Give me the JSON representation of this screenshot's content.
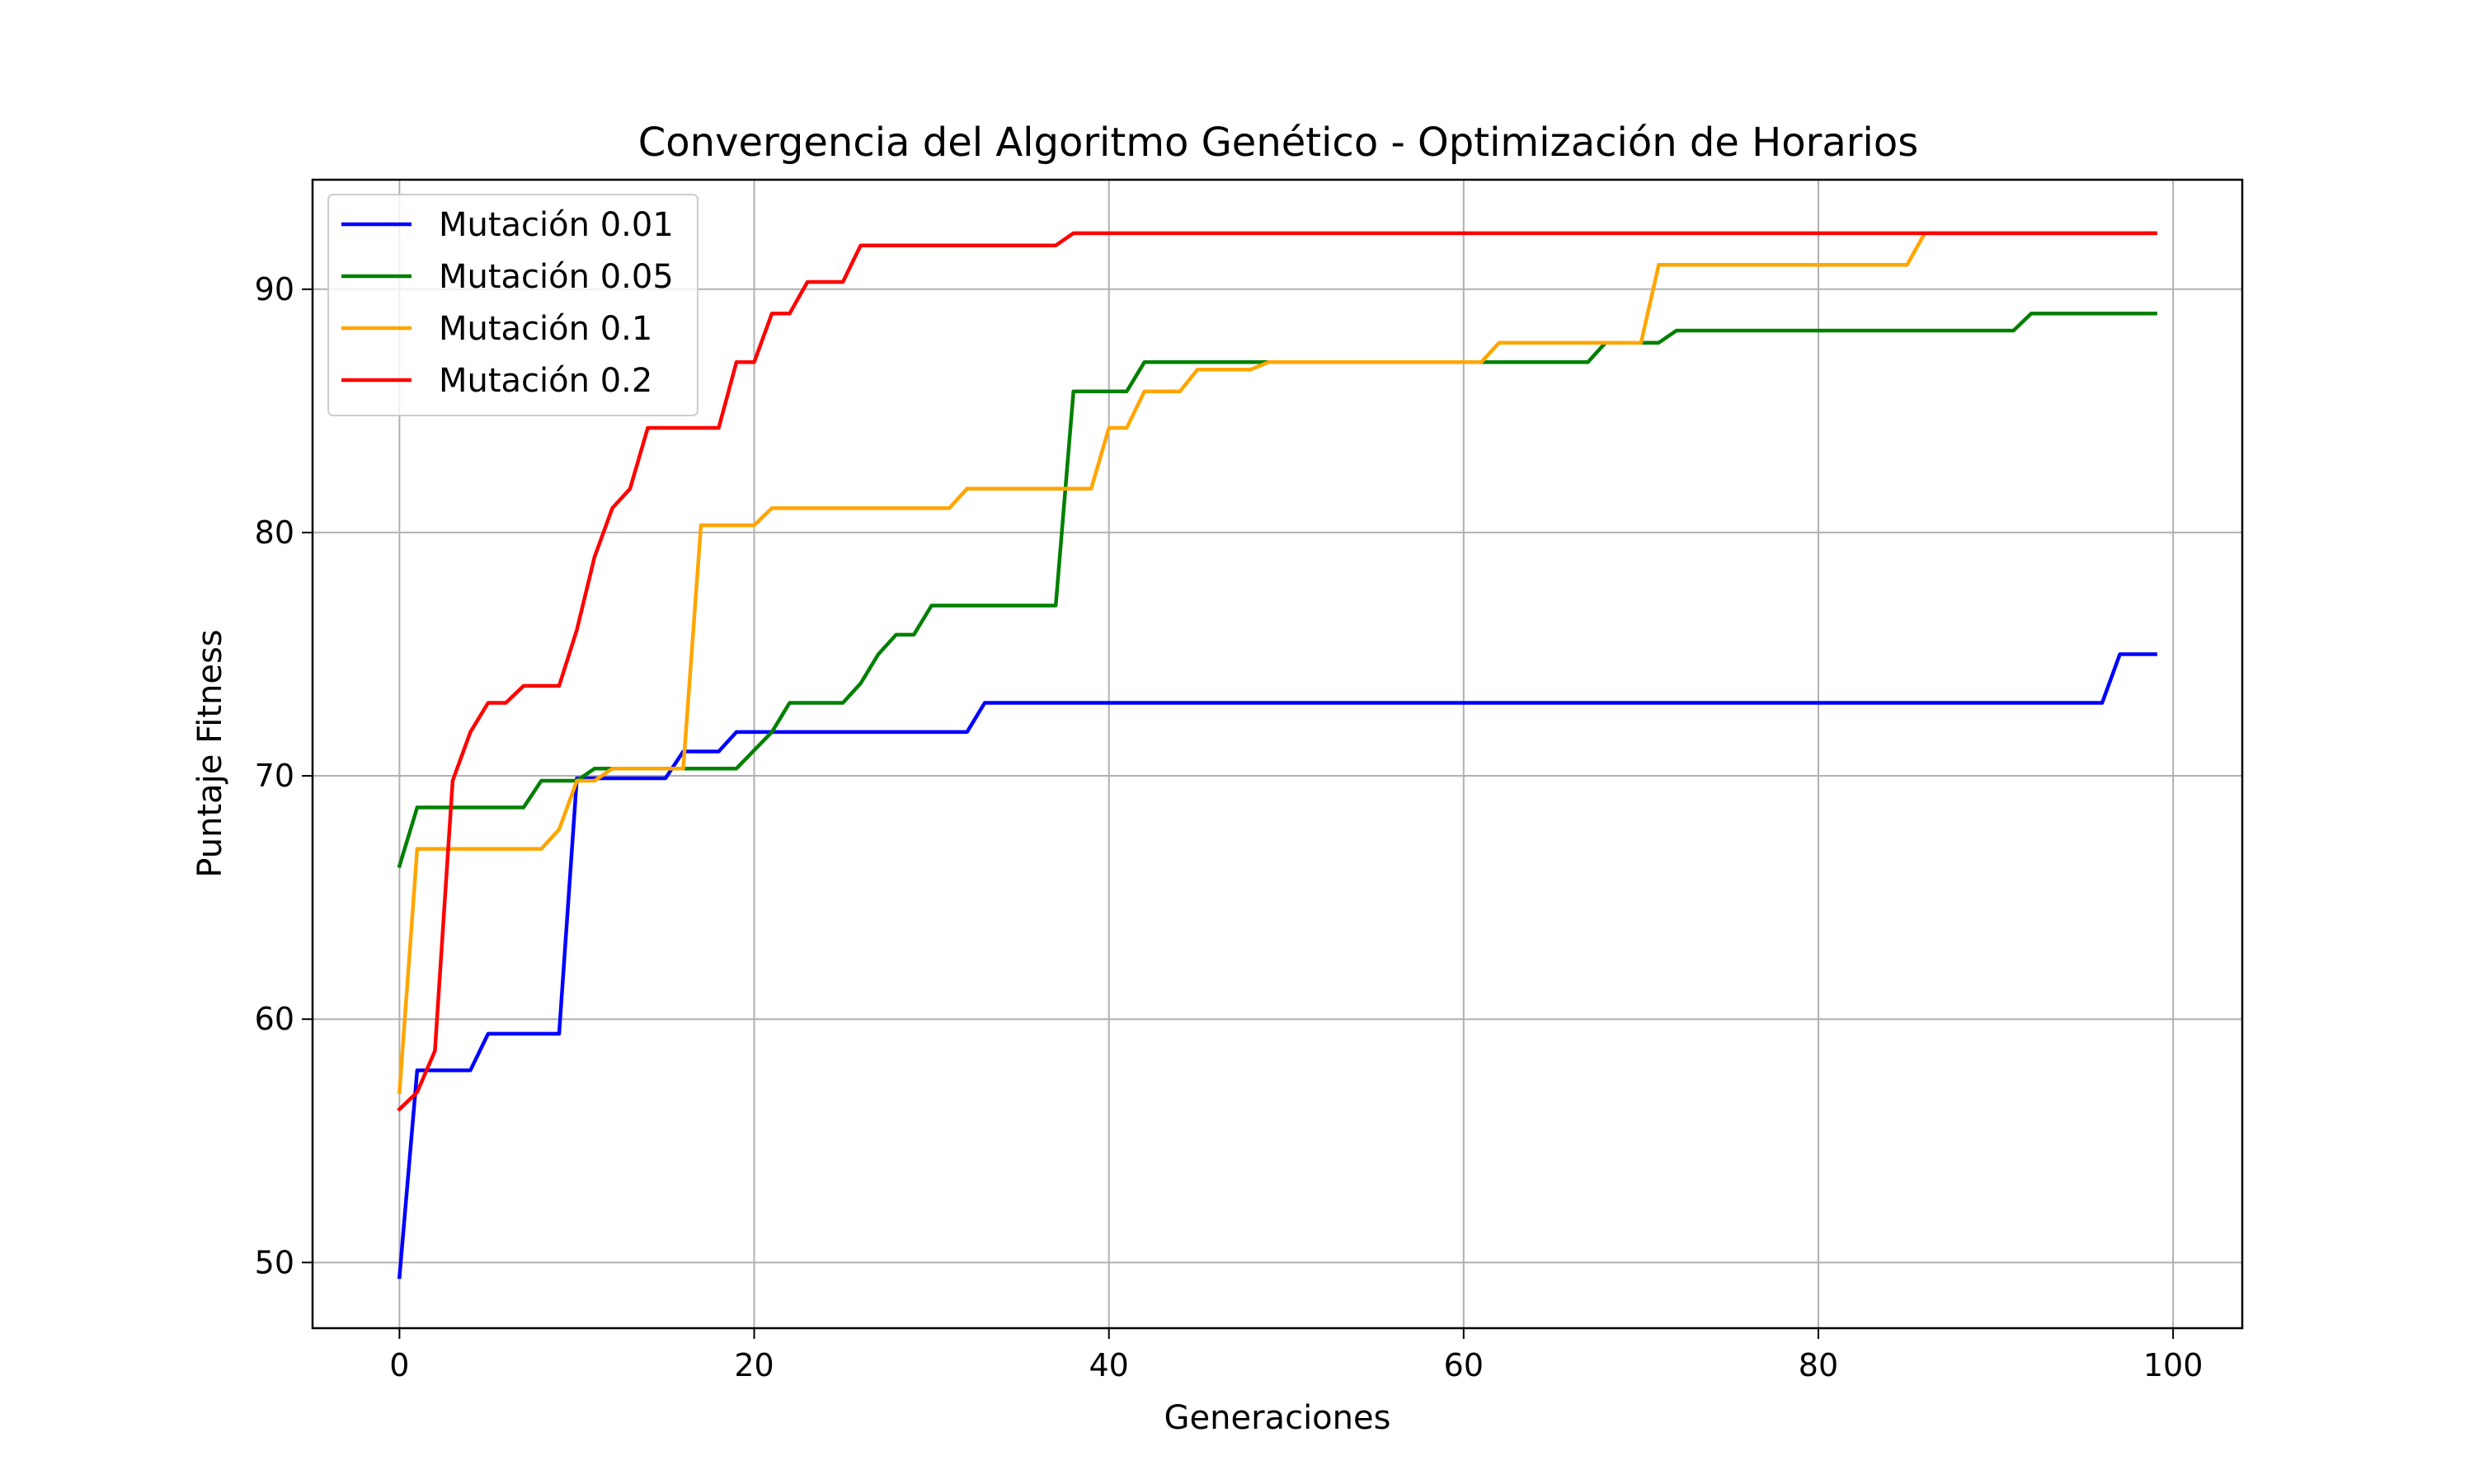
{
  "chart_data": {
    "type": "line",
    "title": "Convergencia del Algoritmo Genético - Optimización de Horarios",
    "xlabel": "Generaciones",
    "ylabel": "Puntaje Fitness",
    "xlim": [
      -4.9,
      103.9
    ],
    "ylim": [
      47.3,
      94.5
    ],
    "xticks": [
      0,
      20,
      40,
      60,
      80,
      100
    ],
    "yticks": [
      50,
      60,
      70,
      80,
      90
    ],
    "grid": true,
    "legend_position": "top-left",
    "series": [
      {
        "name": "Mutación 0.01",
        "color": "#0000ff",
        "points": [
          [
            0,
            49.4
          ],
          [
            1,
            57.9
          ],
          [
            4,
            57.9
          ],
          [
            5,
            59.4
          ],
          [
            9,
            59.4
          ],
          [
            10,
            69.9
          ],
          [
            15,
            69.9
          ],
          [
            16,
            71.0
          ],
          [
            18,
            71.0
          ],
          [
            19,
            71.8
          ],
          [
            32,
            71.8
          ],
          [
            33,
            73.0
          ],
          [
            96,
            73.0
          ],
          [
            97,
            75.0
          ],
          [
            99,
            75.0
          ]
        ]
      },
      {
        "name": "Mutación 0.05",
        "color": "#008000",
        "points": [
          [
            0,
            66.3
          ],
          [
            1,
            68.7
          ],
          [
            7,
            68.7
          ],
          [
            8,
            69.8
          ],
          [
            10,
            69.8
          ],
          [
            11,
            70.3
          ],
          [
            19,
            70.3
          ],
          [
            21,
            71.8
          ],
          [
            22,
            73.0
          ],
          [
            25,
            73.0
          ],
          [
            26,
            73.8
          ],
          [
            27,
            75.0
          ],
          [
            28,
            75.8
          ],
          [
            29,
            75.8
          ],
          [
            30,
            77.0
          ],
          [
            37,
            77.0
          ],
          [
            38,
            85.8
          ],
          [
            41,
            85.8
          ],
          [
            42,
            87.0
          ],
          [
            66,
            87.0
          ],
          [
            67,
            87.0
          ],
          [
            68,
            87.8
          ],
          [
            71,
            87.8
          ],
          [
            72,
            88.3
          ],
          [
            91,
            88.3
          ],
          [
            92,
            89.0
          ],
          [
            99,
            89.0
          ]
        ]
      },
      {
        "name": "Mutación 0.1",
        "color": "#ffa500",
        "points": [
          [
            0,
            57.0
          ],
          [
            1,
            67.0
          ],
          [
            8,
            67.0
          ],
          [
            9,
            67.8
          ],
          [
            10,
            69.8
          ],
          [
            11,
            69.8
          ],
          [
            12,
            70.3
          ],
          [
            16,
            70.3
          ],
          [
            17,
            80.3
          ],
          [
            20,
            80.3
          ],
          [
            21,
            81.0
          ],
          [
            31,
            81.0
          ],
          [
            32,
            81.8
          ],
          [
            39,
            81.8
          ],
          [
            40,
            84.3
          ],
          [
            41,
            84.3
          ],
          [
            42,
            85.8
          ],
          [
            44,
            85.8
          ],
          [
            45,
            86.7
          ],
          [
            48,
            86.7
          ],
          [
            49,
            87.0
          ],
          [
            61,
            87.0
          ],
          [
            62,
            87.8
          ],
          [
            70,
            87.8
          ],
          [
            71,
            91.0
          ],
          [
            85,
            91.0
          ],
          [
            86,
            92.3
          ],
          [
            99,
            92.3
          ]
        ]
      },
      {
        "name": "Mutación 0.2",
        "color": "#ff0000",
        "points": [
          [
            0,
            56.3
          ],
          [
            1,
            57.0
          ],
          [
            2,
            58.7
          ],
          [
            3,
            69.8
          ],
          [
            4,
            71.8
          ],
          [
            5,
            73.0
          ],
          [
            6,
            73.0
          ],
          [
            7,
            73.7
          ],
          [
            9,
            73.7
          ],
          [
            10,
            76.0
          ],
          [
            11,
            79.0
          ],
          [
            12,
            81.0
          ],
          [
            13,
            81.8
          ],
          [
            14,
            84.3
          ],
          [
            18,
            84.3
          ],
          [
            19,
            87.0
          ],
          [
            20,
            87.0
          ],
          [
            21,
            89.0
          ],
          [
            22,
            89.0
          ],
          [
            23,
            90.3
          ],
          [
            25,
            90.3
          ],
          [
            26,
            91.8
          ],
          [
            37,
            91.8
          ],
          [
            38,
            92.3
          ],
          [
            99,
            92.3
          ]
        ]
      }
    ]
  }
}
